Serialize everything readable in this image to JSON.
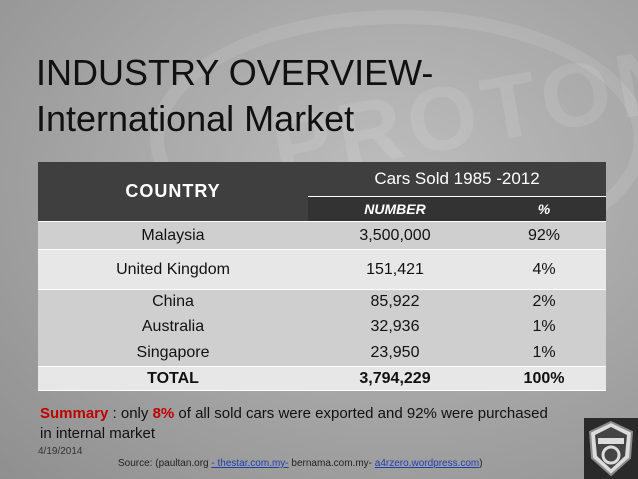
{
  "slide": {
    "title": "INDUSTRY OVERVIEW-International Market",
    "watermark": "PROTON"
  },
  "table": {
    "country_header": "COUNTRY",
    "group_header": "Cars Sold 1985 -2012",
    "sub_headers": [
      "NUMBER",
      "%"
    ],
    "rows": [
      {
        "country": "Malaysia",
        "number": "3,500,000",
        "percent": "92%"
      },
      {
        "country": "United Kingdom",
        "number": "151,421",
        "percent": "4%"
      },
      {
        "country": "China",
        "number": "85,922",
        "percent": "2%"
      },
      {
        "country": "Australia",
        "number": "32,936",
        "percent": "1%"
      },
      {
        "country": "Singapore",
        "number": "23,950",
        "percent": "1%"
      }
    ],
    "total": {
      "country": "TOTAL",
      "number": "3,794,229",
      "percent": "100%"
    }
  },
  "summary": {
    "label": "Summary",
    "text_a": " : only ",
    "highlight": "8%",
    "text_b": " of all sold cars were exported and 92% were purchased in internal market"
  },
  "footer": {
    "date": "4/19/2014",
    "source_prefix": "Source: (paultan.org ",
    "source_link1": "- thestar.com.my-",
    "source_mid": " bernama.com.my- ",
    "source_link2": "a4rzero.wordpress.com",
    "source_suffix": ")"
  },
  "colors": {
    "accent_red": "#c00000",
    "header_dark": "#3f3f3f",
    "row_light": "#e7e7e7",
    "row_mid": "#cfcfcf",
    "link_blue": "#1f3fb0"
  },
  "icons": {
    "logo": "proton-logo-icon"
  }
}
